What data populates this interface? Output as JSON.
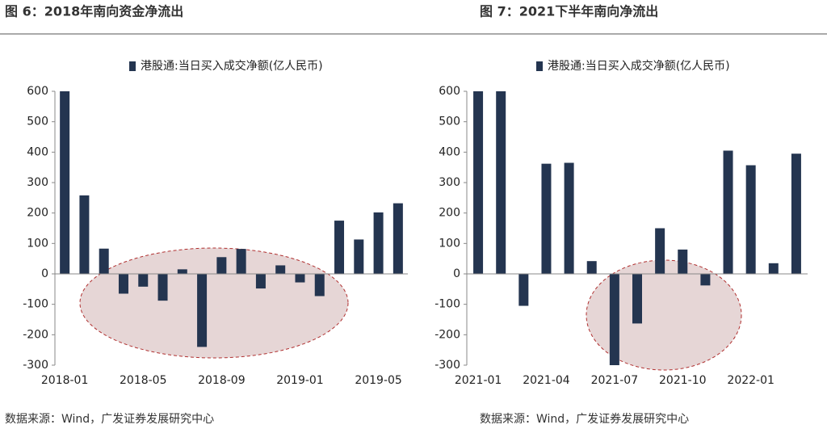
{
  "chart_data": [
    {
      "type": "bar",
      "title": "图 6：2018年南向资金净流出",
      "categories": [
        "2018-01",
        null,
        null,
        null,
        "2018-05",
        null,
        null,
        null,
        "2018-09",
        null,
        null,
        null,
        "2019-01",
        null,
        null,
        null,
        "2019-05",
        null
      ],
      "series": [
        {
          "name": "港股通:当日买入成交净额(亿人民币)",
          "color": "#243550",
          "values": [
            600,
            258,
            83,
            -65,
            -42,
            -88,
            15,
            -240,
            55,
            82,
            -48,
            28,
            -28,
            -73,
            175,
            113,
            202,
            232
          ]
        }
      ],
      "ylim": [
        -300,
        600
      ],
      "yticks": [
        -300,
        -200,
        -100,
        0,
        100,
        200,
        300,
        400,
        500,
        600
      ],
      "source": "数据来源：Wind，广发证券发展研究中心"
    },
    {
      "type": "bar",
      "title": "图 7：2021下半年南向净流出",
      "categories": [
        "2021-01",
        null,
        null,
        "2021-04",
        null,
        null,
        "2021-07",
        null,
        null,
        "2021-10",
        null,
        null,
        "2022-01",
        null,
        null
      ],
      "series": [
        {
          "name": "港股通:当日买入成交净额(亿人民币)",
          "color": "#243550",
          "values": [
            600,
            600,
            -105,
            362,
            365,
            42,
            -300,
            -163,
            150,
            80,
            -38,
            405,
            357,
            35,
            395
          ]
        }
      ],
      "ylim": [
        -300,
        600
      ],
      "yticks": [
        -300,
        -200,
        -100,
        0,
        100,
        200,
        300,
        400,
        500,
        600
      ],
      "source": "数据来源：Wind，广发证券发展研究中心"
    }
  ]
}
